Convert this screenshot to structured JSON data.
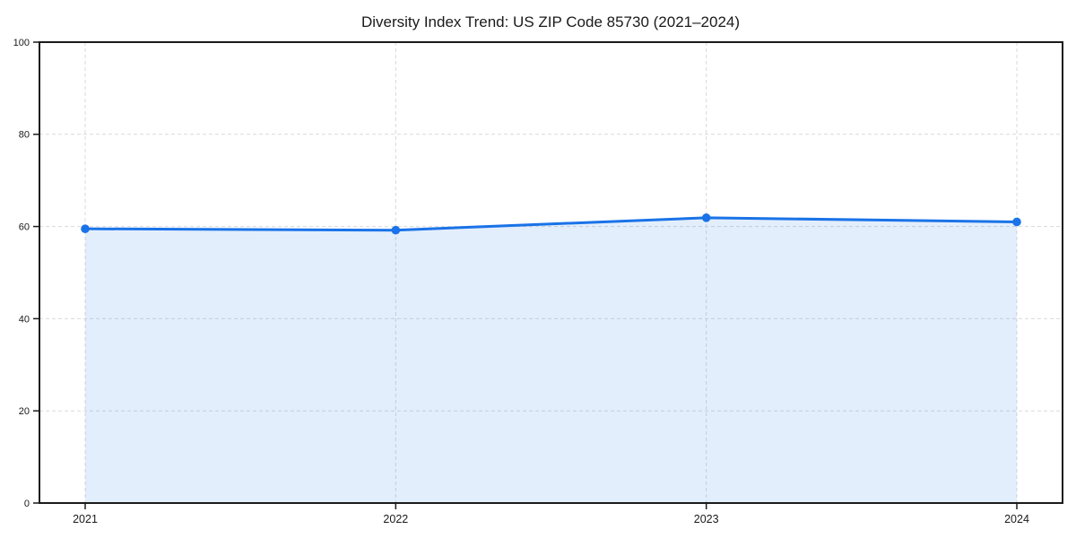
{
  "page": {
    "background": "#ffffff"
  },
  "chart_data": {
    "type": "line",
    "title": "Diversity Index Trend: US ZIP Code 85730 (2021–2024)",
    "categories": [
      "2021",
      "2022",
      "2023",
      "2024"
    ],
    "series": [
      {
        "name": "Diversity Index",
        "values": [
          59.5,
          59.2,
          61.9,
          61.0
        ]
      }
    ],
    "xlabel": "",
    "ylabel": "",
    "ylim": [
      0,
      100
    ],
    "yticks": [
      0,
      20,
      40,
      60,
      80,
      100
    ],
    "grid": "dashed, horizontal at yticks and vertical at each year",
    "legend": "none",
    "area_fill": true,
    "marker": "circle",
    "colors": {
      "line": "#1a73e8",
      "marker": "#1a73e8",
      "area": "rgba(26,115,232,0.12)",
      "grid": "#d9d9d9",
      "axis": "#1a1a1a",
      "text": "#1a1a1a",
      "plot_background": "#ffffff"
    }
  }
}
